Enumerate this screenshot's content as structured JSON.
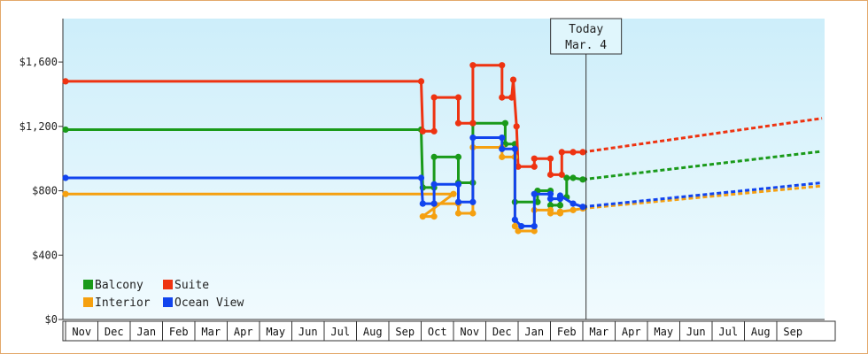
{
  "chart_data": {
    "type": "line",
    "title": "",
    "xlabel": "",
    "ylabel": "",
    "ylim": [
      0,
      1870
    ],
    "yticks": [
      {
        "value": 0,
        "label": "$0"
      },
      {
        "value": 400,
        "label": "$400"
      },
      {
        "value": 800,
        "label": "$800"
      },
      {
        "value": 1200,
        "label": "$1,200"
      },
      {
        "value": 1600,
        "label": "$1,600"
      }
    ],
    "months": [
      "Nov",
      "Dec",
      "Jan",
      "Feb",
      "Mar",
      "Apr",
      "May",
      "Jun",
      "Jul",
      "Aug",
      "Sep",
      "Oct",
      "Nov",
      "Dec",
      "Jan",
      "Feb",
      "Mar",
      "Apr",
      "May",
      "Jun",
      "Jul",
      "Aug",
      "Sep"
    ],
    "today": {
      "line1": "Today",
      "line2": "Mar. 4",
      "x": 16.1
    },
    "grid": false,
    "legend_position": "bottom-left",
    "series": [
      {
        "name": "Balcony",
        "color": "#1a9a1a",
        "values": [
          [
            0,
            1180
          ],
          [
            11,
            1180
          ],
          [
            11.05,
            820
          ],
          [
            11.4,
            820
          ],
          [
            11.4,
            1010
          ],
          [
            12.15,
            1010
          ],
          [
            12.15,
            850
          ],
          [
            12.6,
            850
          ],
          [
            12.6,
            1220
          ],
          [
            13.6,
            1220
          ],
          [
            13.6,
            1090
          ],
          [
            13.9,
            1090
          ],
          [
            13.9,
            730
          ],
          [
            14.6,
            730
          ],
          [
            14.6,
            800
          ],
          [
            15.0,
            800
          ],
          [
            15.0,
            710
          ],
          [
            15.3,
            710
          ],
          [
            15.3,
            760
          ],
          [
            15.5,
            760
          ],
          [
            15.5,
            880
          ],
          [
            15.7,
            880
          ],
          [
            16.0,
            870
          ]
        ],
        "projection": [
          [
            16.0,
            870
          ],
          [
            23.4,
            1045
          ]
        ]
      },
      {
        "name": "Suite",
        "color": "#ee3311",
        "values": [
          [
            0,
            1480
          ],
          [
            11,
            1480
          ],
          [
            11.05,
            1170
          ],
          [
            11.4,
            1170
          ],
          [
            11.4,
            1380
          ],
          [
            12.15,
            1380
          ],
          [
            12.15,
            1220
          ],
          [
            12.6,
            1220
          ],
          [
            12.6,
            1580
          ],
          [
            13.5,
            1580
          ],
          [
            13.5,
            1380
          ],
          [
            13.8,
            1380
          ],
          [
            13.85,
            1490
          ],
          [
            13.95,
            1200
          ],
          [
            14.0,
            950
          ],
          [
            14.5,
            950
          ],
          [
            14.5,
            1000
          ],
          [
            15.0,
            1000
          ],
          [
            15.0,
            900
          ],
          [
            15.35,
            900
          ],
          [
            15.35,
            1040
          ],
          [
            15.7,
            1040
          ],
          [
            16.0,
            1040
          ]
        ],
        "projection": [
          [
            16.0,
            1040
          ],
          [
            23.4,
            1250
          ]
        ]
      },
      {
        "name": "Interior",
        "color": "#f5a010",
        "values": [
          [
            0,
            780
          ],
          [
            12.0,
            780
          ],
          [
            11.05,
            640
          ],
          [
            11.4,
            640
          ],
          [
            11.4,
            720
          ],
          [
            12.15,
            720
          ],
          [
            12.15,
            660
          ],
          [
            12.6,
            660
          ],
          [
            12.6,
            1070
          ],
          [
            13.5,
            1070
          ],
          [
            13.5,
            1010
          ],
          [
            13.9,
            1010
          ],
          [
            13.9,
            580
          ],
          [
            14.0,
            550
          ],
          [
            14.5,
            550
          ],
          [
            14.5,
            680
          ],
          [
            15.0,
            680
          ],
          [
            15.0,
            660
          ],
          [
            15.3,
            660
          ],
          [
            15.3,
            670
          ],
          [
            15.7,
            680
          ],
          [
            16.0,
            690
          ]
        ],
        "projection": [
          [
            16.0,
            690
          ],
          [
            23.4,
            830
          ]
        ]
      },
      {
        "name": "Ocean View",
        "color": "#1144ee",
        "values": [
          [
            0,
            880
          ],
          [
            11,
            880
          ],
          [
            11.05,
            720
          ],
          [
            11.4,
            720
          ],
          [
            11.4,
            840
          ],
          [
            12.15,
            840
          ],
          [
            12.15,
            730
          ],
          [
            12.6,
            730
          ],
          [
            12.6,
            1130
          ],
          [
            13.5,
            1130
          ],
          [
            13.5,
            1060
          ],
          [
            13.9,
            1060
          ],
          [
            13.9,
            620
          ],
          [
            14.1,
            580
          ],
          [
            14.5,
            580
          ],
          [
            14.5,
            780
          ],
          [
            15.0,
            780
          ],
          [
            15.0,
            750
          ],
          [
            15.3,
            750
          ],
          [
            15.3,
            770
          ],
          [
            15.7,
            720
          ],
          [
            16.0,
            700
          ]
        ],
        "projection": [
          [
            16.0,
            700
          ],
          [
            23.4,
            850
          ]
        ]
      }
    ]
  }
}
